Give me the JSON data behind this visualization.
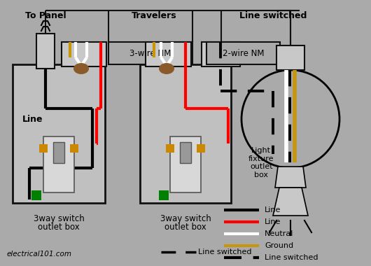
{
  "bg_color": "#aaaaaa",
  "label_to_panel": "To Panel",
  "label_travelers": "Travelers",
  "label_line_switched": "Line switched",
  "label_3wire": "3-wire NM",
  "label_2wire": "2-wire NM",
  "label_line_text": "Line",
  "label_switch1": "3way switch\noutlet box",
  "label_switch2": "3way switch\noutlet box",
  "label_light_box": "Light\nfixture\noutlet\nbox",
  "label_website": "electrical101.com",
  "wire_black": "#000000",
  "wire_red": "#ff0000",
  "wire_white": "#ffffff",
  "wire_gold": "#c8960c",
  "wire_green": "#008000",
  "connector_brown": "#8B5A2B",
  "screw_color": "#cc8800",
  "box_face": "#c0c0c0",
  "box_edge": "#111111",
  "switch_face": "#d8d8d8",
  "nm_box_face": "#aaaaaa",
  "cable_box_face": "#c8c8c8"
}
